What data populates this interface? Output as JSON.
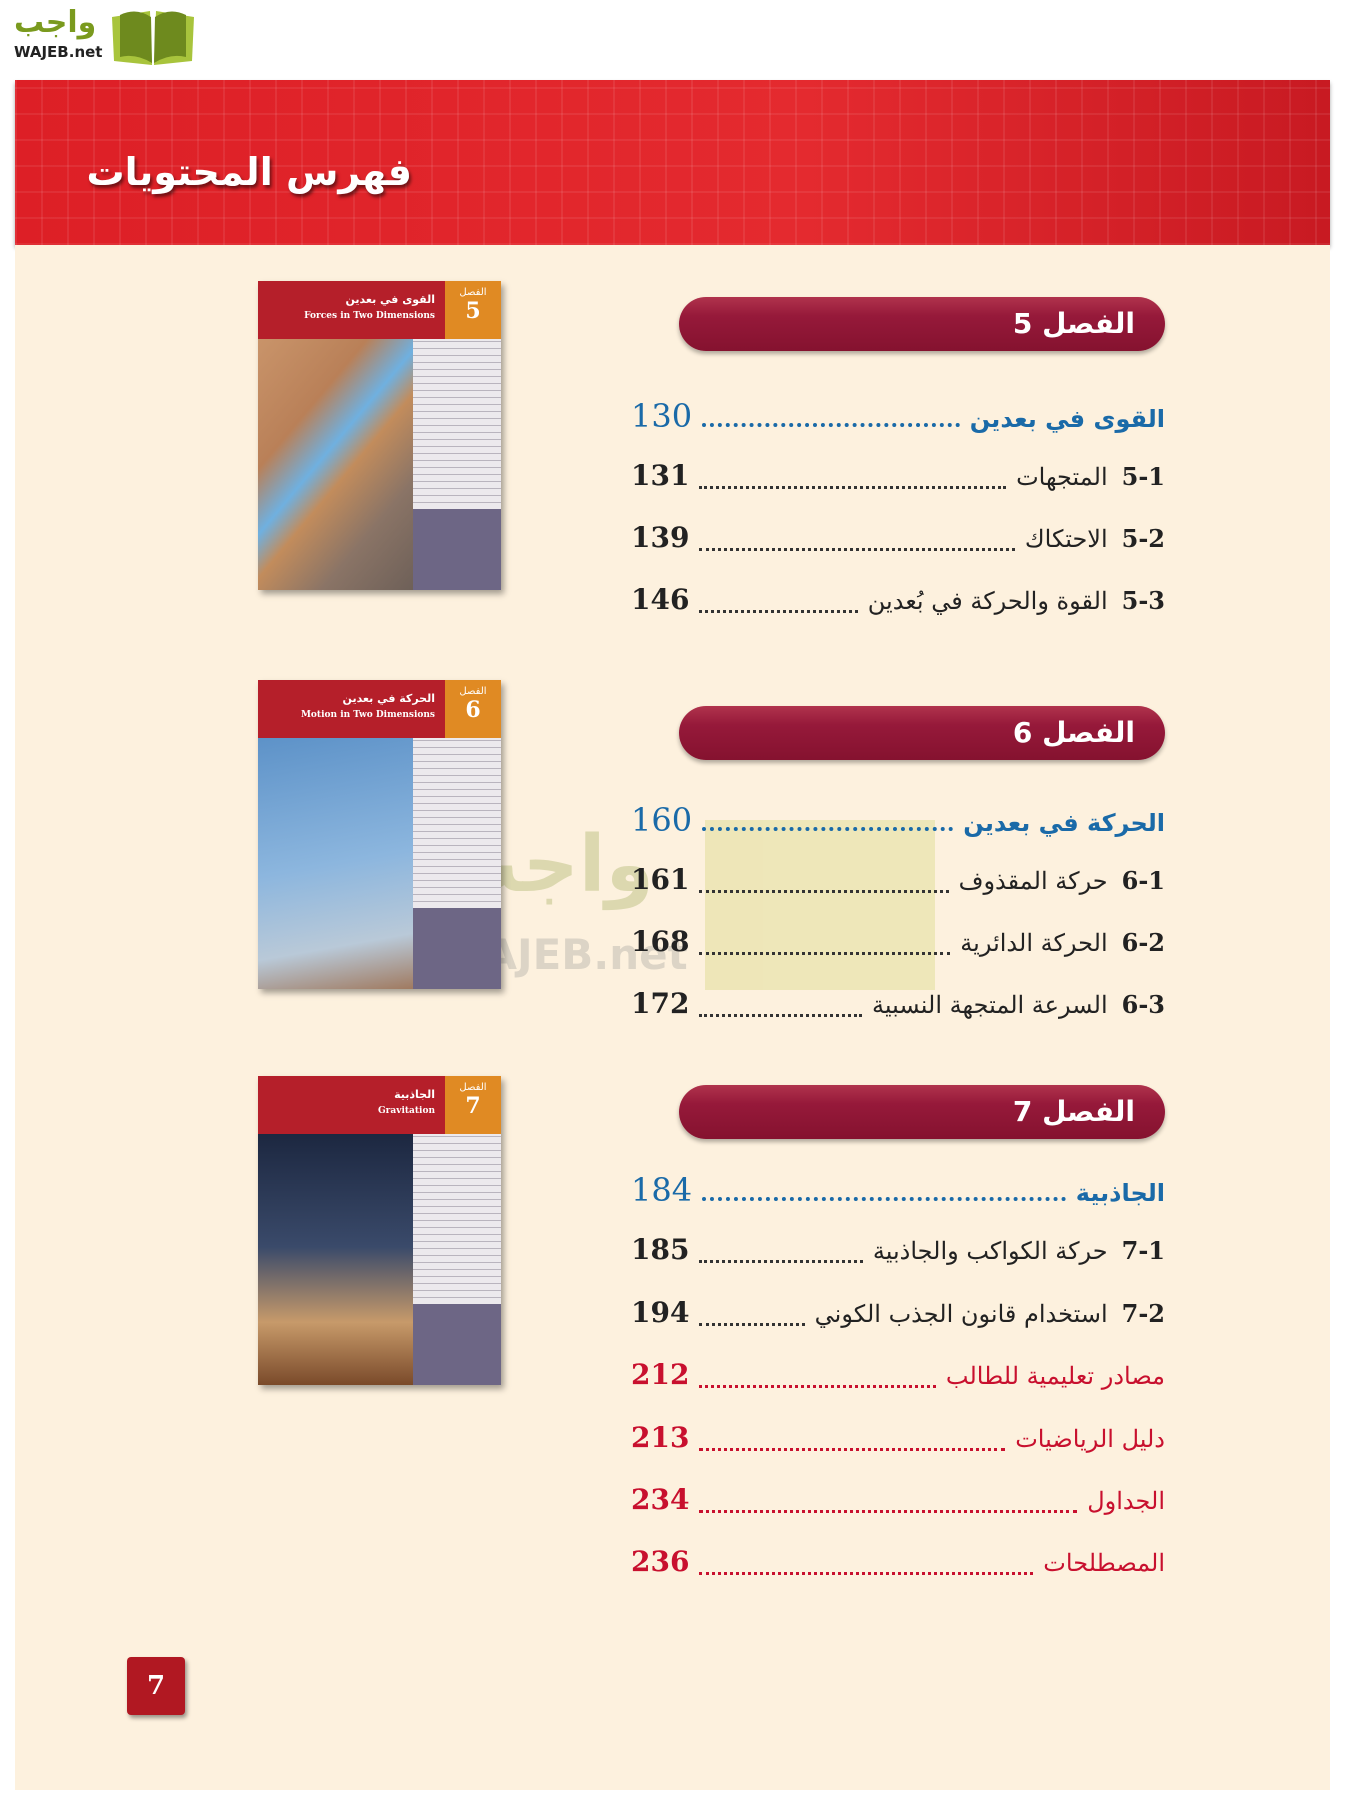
{
  "logo": {
    "arabic": "واجب",
    "latin": "WAJEB.net"
  },
  "header": {
    "title": "فهرس المحتويات"
  },
  "chapters": [
    {
      "label": "الفصل 5",
      "thumb": {
        "chapter_word": "الفصل",
        "number": "5",
        "title_ar": "القوى في بعدين",
        "title_en": "Forces in Two Dimensions"
      },
      "main": {
        "title": "القوى في بعدين",
        "page": "130"
      },
      "sections": [
        {
          "code": "5-1",
          "title": "المتجهات",
          "page": "131"
        },
        {
          "code": "5-2",
          "title": "الاحتكاك",
          "page": "139"
        },
        {
          "code": "5-3",
          "title": "القوة والحركة في بُعدين",
          "page": "146"
        }
      ]
    },
    {
      "label": "الفصل 6",
      "thumb": {
        "chapter_word": "الفصل",
        "number": "6",
        "title_ar": "الحركة في بعدين",
        "title_en": "Motion in Two Dimensions"
      },
      "main": {
        "title": "الحركة في بعدين",
        "page": "160"
      },
      "sections": [
        {
          "code": "6-1",
          "title": "حركة المقذوف",
          "page": "161"
        },
        {
          "code": "6-2",
          "title": "الحركة الدائرية",
          "page": "168"
        },
        {
          "code": "6-3",
          "title": "السرعة المتجهة النسبية",
          "page": "172"
        }
      ]
    },
    {
      "label": "الفصل 7",
      "thumb": {
        "chapter_word": "الفصل",
        "number": "7",
        "title_ar": "الجاذبية",
        "title_en": "Gravitation"
      },
      "main": {
        "title": "الجاذبية",
        "page": "184"
      },
      "sections": [
        {
          "code": "7-1",
          "title": "حركة الكواكب والجاذبية",
          "page": "185"
        },
        {
          "code": "7-2",
          "title": "استخدام قانون الجذب الكوني",
          "page": "194"
        }
      ]
    }
  ],
  "appendices": [
    {
      "title": "مصادر تعليمية للطالب",
      "page": "212"
    },
    {
      "title": "دليل الرياضيات",
      "page": "213"
    },
    {
      "title": "الجداول",
      "page": "234"
    },
    {
      "title": "المصطلحات",
      "page": "236"
    }
  ],
  "page_number": "7",
  "colors": {
    "header_red": "#dd1f26",
    "pill": "#96193a",
    "link_blue": "#1a6aa8",
    "appendix_red": "#c8102e",
    "paper": "#fdf1de"
  }
}
